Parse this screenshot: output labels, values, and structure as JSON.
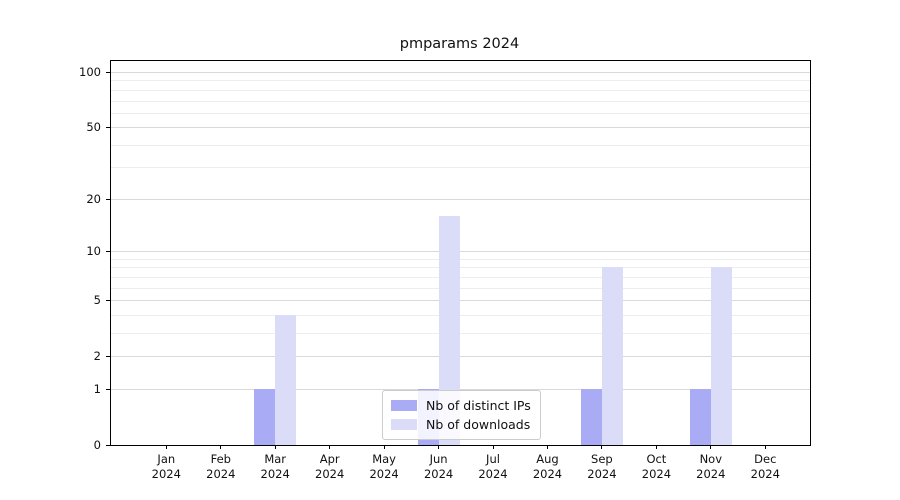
{
  "title": "pmparams 2024",
  "colors": {
    "ips": "#a9abf5",
    "downloads": "#dadcf8",
    "grid_major": "#d9d9d9",
    "grid_minor": "#ededed",
    "axis": "#000000",
    "legend_border": "#cccccc"
  },
  "legend": {
    "items": [
      {
        "label": "Nb of distinct IPs",
        "color_key": "ips"
      },
      {
        "label": "Nb of downloads",
        "color_key": "downloads"
      }
    ]
  },
  "y_axis": {
    "scale": "log1p",
    "tick_values": [
      0,
      1,
      2,
      5,
      10,
      20,
      50,
      100
    ],
    "tick_labels": [
      "0",
      "1",
      "2",
      "5",
      "10",
      "20",
      "50",
      "100"
    ],
    "minor_gridline_values": [
      3,
      4,
      6,
      7,
      8,
      9,
      30,
      40,
      60,
      70,
      80,
      90
    ],
    "max_value": 114.7
  },
  "x_axis": {
    "months": [
      {
        "label": "Jan",
        "year": "2024"
      },
      {
        "label": "Feb",
        "year": "2024"
      },
      {
        "label": "Mar",
        "year": "2024"
      },
      {
        "label": "Apr",
        "year": "2024"
      },
      {
        "label": "May",
        "year": "2024"
      },
      {
        "label": "Jun",
        "year": "2024"
      },
      {
        "label": "Jul",
        "year": "2024"
      },
      {
        "label": "Aug",
        "year": "2024"
      },
      {
        "label": "Sep",
        "year": "2024"
      },
      {
        "label": "Oct",
        "year": "2024"
      },
      {
        "label": "Nov",
        "year": "2024"
      },
      {
        "label": "Dec",
        "year": "2024"
      }
    ]
  },
  "chart_data": {
    "type": "bar",
    "title": "pmparams 2024",
    "categories": [
      "Jan 2024",
      "Feb 2024",
      "Mar 2024",
      "Apr 2024",
      "May 2024",
      "Jun 2024",
      "Jul 2024",
      "Aug 2024",
      "Sep 2024",
      "Oct 2024",
      "Nov 2024",
      "Dec 2024"
    ],
    "series": [
      {
        "name": "Nb of distinct IPs",
        "values": [
          0,
          0,
          1,
          0,
          0,
          1,
          0,
          0,
          1,
          0,
          1,
          0
        ]
      },
      {
        "name": "Nb of downloads",
        "values": [
          0,
          0,
          4,
          0,
          0,
          16,
          0,
          0,
          8,
          0,
          8,
          0
        ]
      }
    ],
    "xlabel": "",
    "ylabel": "",
    "y_scale": "log1p",
    "y_ticks": [
      0,
      1,
      2,
      5,
      10,
      20,
      50,
      100
    ],
    "grid": "horizontal",
    "legend_position": "lower center inside plot"
  }
}
